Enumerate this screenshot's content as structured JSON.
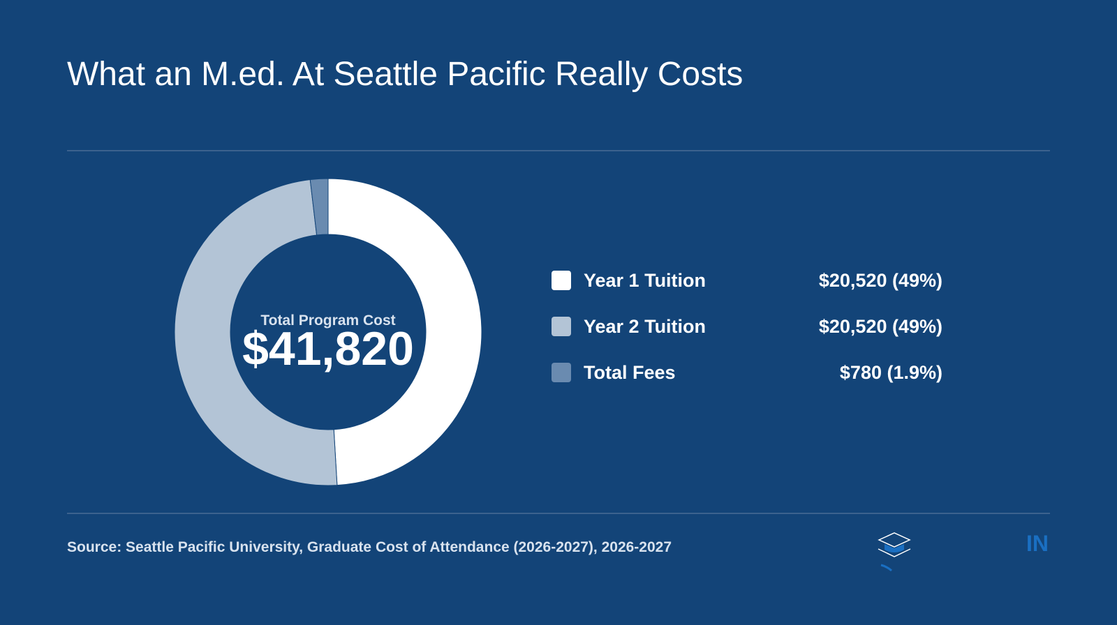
{
  "chart_data": {
    "type": "donut",
    "title": "What an M.ed. At Seattle Pacific Really Costs",
    "center_label": "Total Program Cost",
    "total": {
      "value": 41820,
      "label": "$41,820"
    },
    "categories": [
      "Year 1 Tuition",
      "Year 2 Tuition",
      "Total Fees"
    ],
    "values": [
      20520,
      20520,
      780
    ],
    "value_labels": [
      "$20,520 (49%)",
      "$20,520 (49%)",
      "$780 (1.9%)"
    ],
    "colors": [
      "#ffffff",
      "#b3c4d6",
      "#6a8bb0"
    ]
  },
  "footer": {
    "source": "Source: Seattle Pacific University, Graduate Cost of Attendance (2026-2027), 2026-2027",
    "logo": "IN"
  }
}
